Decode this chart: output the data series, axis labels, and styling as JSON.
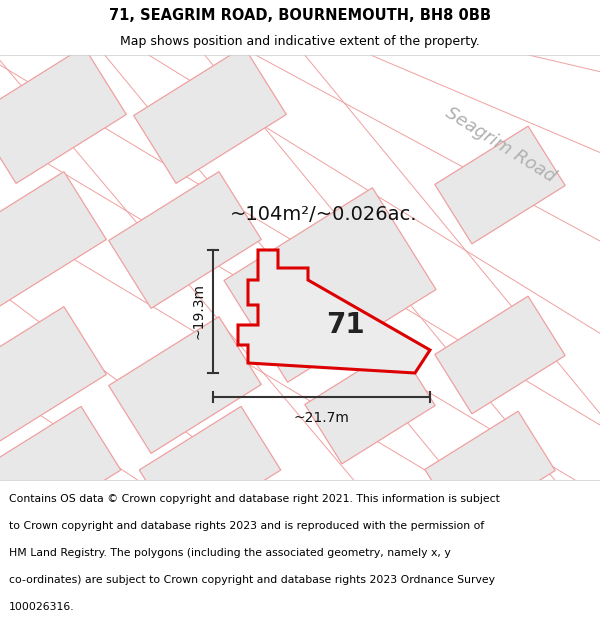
{
  "title_line1": "71, SEAGRIM ROAD, BOURNEMOUTH, BH8 0BB",
  "title_line2": "Map shows position and indicative extent of the property.",
  "footer_text": "Contains OS data © Crown copyright and database right 2021. This information is subject to Crown copyright and database rights 2023 and is reproduced with the permission of HM Land Registry. The polygons (including the associated geometry, namely x, y co-ordinates) are subject to Crown copyright and database rights 2023 Ordnance Survey 100026316.",
  "area_label": "~104m²/~0.026ac.",
  "number_label": "71",
  "dim_h_label": "~19.3m",
  "dim_w_label": "~21.7m",
  "road_label": "Seagrim Road",
  "map_bg": "#f7f7f7",
  "plot_fill": "#ebebeb",
  "plot_edge_color": "#dd0000",
  "road_line_color": "#f0a0a0",
  "block_fill": "#e8e8e8",
  "block_edge": "#f0a0a0",
  "title_fontsize": 10.5,
  "subtitle_fontsize": 9.0,
  "footer_fontsize": 7.8,
  "area_fontsize": 14,
  "number_fontsize": 20,
  "dim_fontsize": 10,
  "road_fontsize": 13
}
